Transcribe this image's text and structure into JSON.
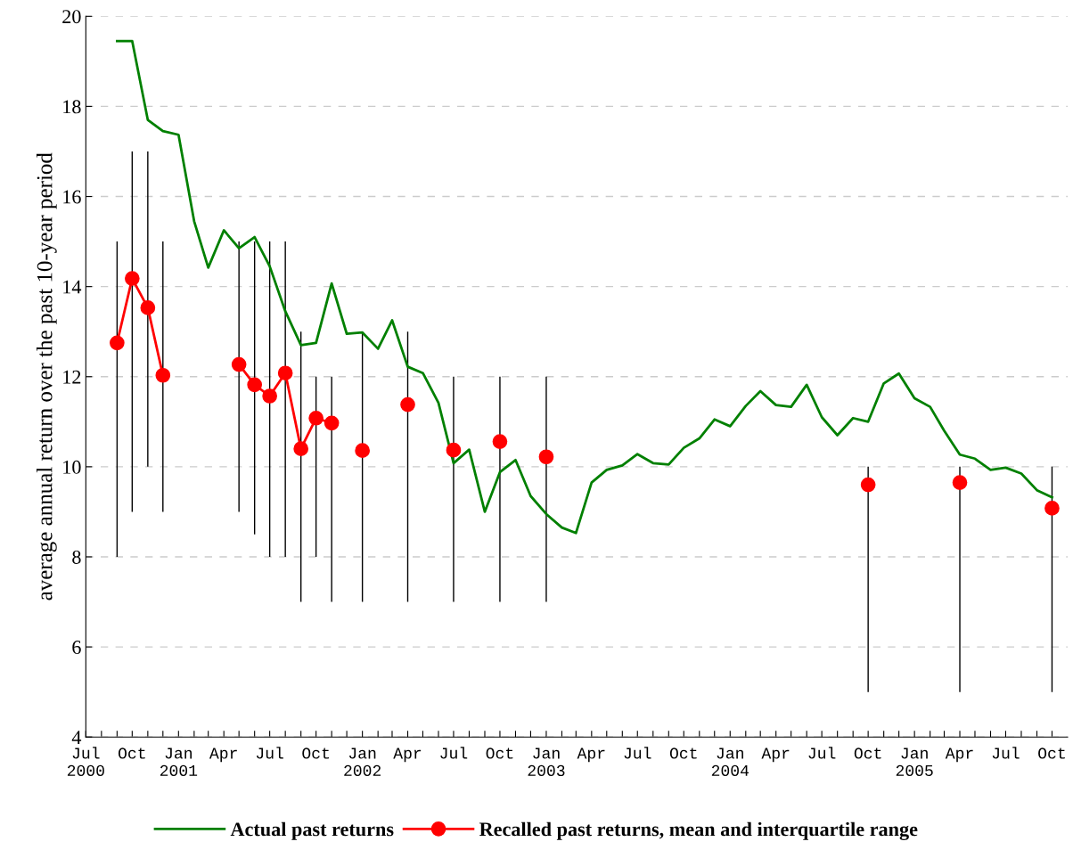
{
  "chart_data": {
    "type": "line",
    "ylabel": "average annual return over the past 10-year period",
    "xlim": [
      "2000-07",
      "2005-11"
    ],
    "ylim": [
      4,
      20
    ],
    "yticks": [
      4,
      6,
      8,
      10,
      12,
      14,
      16,
      18,
      20
    ],
    "xticks": [
      {
        "value": "2000-07",
        "label": "Jul\n2000"
      },
      {
        "value": "2000-08",
        "label": null
      },
      {
        "value": "2000-09",
        "label": null
      },
      {
        "value": "2000-10",
        "label": "Oct"
      },
      {
        "value": "2000-11",
        "label": null
      },
      {
        "value": "2000-12",
        "label": null
      },
      {
        "value": "2001-01",
        "label": "Jan\n2001"
      },
      {
        "value": "2001-02",
        "label": null
      },
      {
        "value": "2001-03",
        "label": null
      },
      {
        "value": "2001-04",
        "label": "Apr"
      },
      {
        "value": "2001-05",
        "label": null
      },
      {
        "value": "2001-06",
        "label": null
      },
      {
        "value": "2001-07",
        "label": "Jul"
      },
      {
        "value": "2001-08",
        "label": null
      },
      {
        "value": "2001-09",
        "label": null
      },
      {
        "value": "2001-10",
        "label": "Oct"
      },
      {
        "value": "2001-11",
        "label": null
      },
      {
        "value": "2001-12",
        "label": null
      },
      {
        "value": "2002-01",
        "label": "Jan\n2002"
      },
      {
        "value": "2002-02",
        "label": null
      },
      {
        "value": "2002-03",
        "label": null
      },
      {
        "value": "2002-04",
        "label": "Apr"
      },
      {
        "value": "2002-05",
        "label": null
      },
      {
        "value": "2002-06",
        "label": null
      },
      {
        "value": "2002-07",
        "label": "Jul"
      },
      {
        "value": "2002-08",
        "label": null
      },
      {
        "value": "2002-09",
        "label": null
      },
      {
        "value": "2002-10",
        "label": "Oct"
      },
      {
        "value": "2002-11",
        "label": null
      },
      {
        "value": "2002-12",
        "label": null
      },
      {
        "value": "2003-01",
        "label": "Jan\n2003"
      },
      {
        "value": "2003-02",
        "label": null
      },
      {
        "value": "2003-03",
        "label": null
      },
      {
        "value": "2003-04",
        "label": "Apr"
      },
      {
        "value": "2003-05",
        "label": null
      },
      {
        "value": "2003-06",
        "label": null
      },
      {
        "value": "2003-07",
        "label": "Jul"
      },
      {
        "value": "2003-08",
        "label": null
      },
      {
        "value": "2003-09",
        "label": null
      },
      {
        "value": "2003-10",
        "label": "Oct"
      },
      {
        "value": "2003-11",
        "label": null
      },
      {
        "value": "2003-12",
        "label": null
      },
      {
        "value": "2004-01",
        "label": "Jan\n2004"
      },
      {
        "value": "2004-02",
        "label": null
      },
      {
        "value": "2004-03",
        "label": null
      },
      {
        "value": "2004-04",
        "label": "Apr"
      },
      {
        "value": "2004-05",
        "label": null
      },
      {
        "value": "2004-06",
        "label": null
      },
      {
        "value": "2004-07",
        "label": "Jul"
      },
      {
        "value": "2004-08",
        "label": null
      },
      {
        "value": "2004-09",
        "label": null
      },
      {
        "value": "2004-10",
        "label": "Oct"
      },
      {
        "value": "2004-11",
        "label": null
      },
      {
        "value": "2004-12",
        "label": null
      },
      {
        "value": "2005-01",
        "label": "Jan\n2005"
      },
      {
        "value": "2005-02",
        "label": null
      },
      {
        "value": "2005-03",
        "label": null
      },
      {
        "value": "2005-04",
        "label": "Apr"
      },
      {
        "value": "2005-05",
        "label": null
      },
      {
        "value": "2005-06",
        "label": null
      },
      {
        "value": "2005-07",
        "label": "Jul"
      },
      {
        "value": "2005-08",
        "label": null
      },
      {
        "value": "2005-09",
        "label": null
      },
      {
        "value": "2005-10",
        "label": "Oct"
      }
    ],
    "grid": "y",
    "legend": "bottom",
    "line_style": "solid",
    "series": [
      {
        "name": "Actual past returns",
        "color": "#008000",
        "marker": "none",
        "x": [
          "2000-09",
          "2000-10",
          "2000-11",
          "2000-12",
          "2001-01",
          "2001-02",
          "2001-03",
          "2001-04",
          "2001-05",
          "2001-06",
          "2001-07",
          "2001-08",
          "2001-09",
          "2001-10",
          "2001-11",
          "2001-12",
          "2002-01",
          "2002-02",
          "2002-03",
          "2002-04",
          "2002-05",
          "2002-06",
          "2002-07",
          "2002-08",
          "2002-09",
          "2002-10",
          "2002-11",
          "2002-12",
          "2003-01",
          "2003-02",
          "2003-03",
          "2003-04",
          "2003-05",
          "2003-06",
          "2003-07",
          "2003-08",
          "2003-09",
          "2003-10",
          "2003-11",
          "2003-12",
          "2004-01",
          "2004-02",
          "2004-03",
          "2004-04",
          "2004-05",
          "2004-06",
          "2004-07",
          "2004-08",
          "2004-09",
          "2004-10",
          "2004-11",
          "2004-12",
          "2005-01",
          "2005-02",
          "2005-03",
          "2005-04",
          "2005-05",
          "2005-06",
          "2005-07",
          "2005-08",
          "2005-09",
          "2005-10"
        ],
        "values": [
          19.45,
          19.45,
          17.7,
          17.45,
          17.37,
          15.45,
          14.42,
          15.25,
          14.85,
          15.1,
          14.45,
          13.45,
          12.7,
          12.75,
          14.07,
          12.95,
          12.98,
          12.62,
          13.25,
          12.22,
          12.08,
          11.42,
          10.08,
          10.38,
          9.0,
          9.88,
          10.15,
          9.35,
          8.95,
          8.65,
          8.53,
          9.65,
          9.93,
          10.03,
          10.28,
          10.08,
          10.05,
          10.42,
          10.63,
          11.05,
          10.9,
          11.35,
          11.68,
          11.37,
          11.33,
          11.82,
          11.1,
          10.7,
          11.08,
          11.0,
          11.85,
          12.07,
          11.52,
          11.33,
          10.8,
          10.27,
          10.18,
          9.93,
          9.98,
          9.85,
          9.48,
          9.32
        ]
      },
      {
        "name": "Recalled past returns, mean and interquartile range",
        "color": "#ff0000",
        "marker": "circle",
        "x": [
          "2000-09",
          "2000-10",
          "2000-11",
          "2000-12",
          "2001-01",
          "2001-05",
          "2001-06",
          "2001-07",
          "2001-08",
          "2001-09",
          "2001-10",
          "2001-11",
          "2001-12",
          "2002-01",
          "2002-02",
          "2002-04",
          "2002-05",
          "2002-07",
          "2002-08",
          "2002-10",
          "2002-11",
          "2003-01",
          "2003-02",
          "2004-10",
          "2004-11",
          "2005-04",
          "2005-05",
          "2005-10"
        ],
        "values": [
          12.75,
          14.18,
          13.53,
          12.03,
          null,
          12.27,
          11.82,
          11.57,
          12.08,
          10.4,
          11.08,
          10.97,
          null,
          10.36,
          null,
          11.38,
          null,
          10.37,
          null,
          10.56,
          null,
          10.22,
          null,
          9.6,
          null,
          9.65,
          null,
          9.08
        ],
        "errors": [
          [
            8,
            15
          ],
          [
            9,
            17
          ],
          [
            10,
            17
          ],
          [
            9,
            15
          ],
          null,
          [
            9,
            15
          ],
          [
            8.5,
            15
          ],
          [
            8,
            15
          ],
          [
            8,
            15
          ],
          [
            7,
            13
          ],
          [
            8,
            12
          ],
          [
            7,
            12
          ],
          null,
          [
            7,
            13
          ],
          null,
          [
            7,
            13
          ],
          null,
          [
            7,
            12
          ],
          null,
          [
            7,
            12
          ],
          null,
          [
            7,
            12
          ],
          null,
          [
            5,
            10
          ],
          null,
          [
            5,
            10
          ],
          null,
          [
            5,
            10
          ]
        ]
      }
    ]
  }
}
